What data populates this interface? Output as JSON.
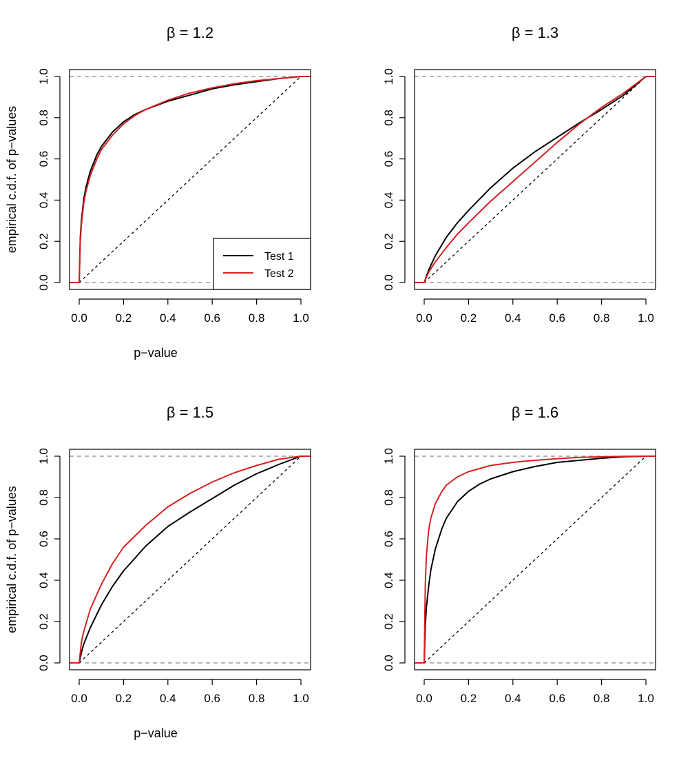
{
  "colors": {
    "test1": "#000000",
    "test2": "#d62020",
    "ref": "#888888",
    "diag": "#000000"
  },
  "chart_data": [
    {
      "type": "line",
      "title": "β = 1.2",
      "xlabel": "p−value",
      "ylabel": "empirical c.d.f. of p−values",
      "xlim": [
        0,
        1
      ],
      "ylim": [
        0,
        1
      ],
      "xticks": [
        "0.0",
        "0.2",
        "0.4",
        "0.6",
        "0.8",
        "1.0"
      ],
      "yticks": [
        "0.0",
        "0.2",
        "0.4",
        "0.6",
        "0.8",
        "1.0"
      ],
      "reference_lines": {
        "horizontal": [
          0,
          1
        ],
        "diagonal": true
      },
      "legend": {
        "position": "bottom-right",
        "entries": [
          "Test 1",
          "Test 2"
        ]
      },
      "series": [
        {
          "name": "Test 1",
          "color": "#000000",
          "x": [
            0,
            0.005,
            0.01,
            0.02,
            0.03,
            0.05,
            0.08,
            0.1,
            0.15,
            0.2,
            0.25,
            0.3,
            0.4,
            0.5,
            0.6,
            0.7,
            0.8,
            0.9,
            1.0
          ],
          "y": [
            0,
            0.22,
            0.3,
            0.4,
            0.46,
            0.54,
            0.62,
            0.66,
            0.73,
            0.78,
            0.815,
            0.84,
            0.88,
            0.91,
            0.94,
            0.96,
            0.975,
            0.99,
            1.0
          ]
        },
        {
          "name": "Test 2",
          "color": "#d62020",
          "x": [
            0,
            0.005,
            0.01,
            0.02,
            0.03,
            0.05,
            0.08,
            0.1,
            0.15,
            0.2,
            0.25,
            0.3,
            0.4,
            0.5,
            0.6,
            0.7,
            0.8,
            0.9,
            1.0
          ],
          "y": [
            0,
            0.2,
            0.28,
            0.38,
            0.44,
            0.52,
            0.6,
            0.645,
            0.715,
            0.77,
            0.81,
            0.84,
            0.885,
            0.92,
            0.945,
            0.965,
            0.98,
            0.99,
            1.0
          ]
        }
      ]
    },
    {
      "type": "line",
      "title": "β = 1.3",
      "xlabel": "",
      "ylabel": "",
      "xlim": [
        0,
        1
      ],
      "ylim": [
        0,
        1
      ],
      "xticks": [
        "0.0",
        "0.2",
        "0.4",
        "0.6",
        "0.8",
        "1.0"
      ],
      "yticks": [
        "0.0",
        "0.2",
        "0.4",
        "0.6",
        "0.8",
        "1.0"
      ],
      "reference_lines": {
        "horizontal": [
          0,
          1
        ],
        "diagonal": true
      },
      "series": [
        {
          "name": "Test 1",
          "color": "#000000",
          "x": [
            0,
            0.02,
            0.05,
            0.1,
            0.15,
            0.2,
            0.3,
            0.4,
            0.5,
            0.6,
            0.7,
            0.8,
            0.9,
            0.95,
            1.0
          ],
          "y": [
            0,
            0.06,
            0.13,
            0.22,
            0.29,
            0.35,
            0.46,
            0.555,
            0.635,
            0.705,
            0.775,
            0.84,
            0.91,
            0.955,
            1.0
          ]
        },
        {
          "name": "Test 2",
          "color": "#d62020",
          "x": [
            0,
            0.02,
            0.05,
            0.1,
            0.15,
            0.2,
            0.3,
            0.4,
            0.5,
            0.6,
            0.7,
            0.8,
            0.9,
            0.95,
            1.0
          ],
          "y": [
            0,
            0.05,
            0.1,
            0.17,
            0.235,
            0.29,
            0.395,
            0.49,
            0.585,
            0.68,
            0.77,
            0.85,
            0.92,
            0.96,
            1.0
          ]
        }
      ]
    },
    {
      "type": "line",
      "title": "β = 1.5",
      "xlabel": "p−value",
      "ylabel": "empirical c.d.f. of p−values",
      "xlim": [
        0,
        1
      ],
      "ylim": [
        0,
        1
      ],
      "xticks": [
        "0.0",
        "0.2",
        "0.4",
        "0.6",
        "0.8",
        "1.0"
      ],
      "yticks": [
        "0.0",
        "0.2",
        "0.4",
        "0.6",
        "0.8",
        "1.0"
      ],
      "reference_lines": {
        "horizontal": [
          0,
          1
        ],
        "diagonal": true
      },
      "series": [
        {
          "name": "Test 1",
          "color": "#000000",
          "x": [
            0,
            0.01,
            0.02,
            0.05,
            0.1,
            0.15,
            0.2,
            0.3,
            0.4,
            0.5,
            0.6,
            0.7,
            0.8,
            0.9,
            1.0
          ],
          "y": [
            0,
            0.05,
            0.09,
            0.17,
            0.28,
            0.37,
            0.445,
            0.565,
            0.66,
            0.73,
            0.795,
            0.86,
            0.915,
            0.96,
            1.0
          ]
        },
        {
          "name": "Test 2",
          "color": "#d62020",
          "x": [
            0,
            0.01,
            0.02,
            0.05,
            0.1,
            0.15,
            0.2,
            0.3,
            0.4,
            0.5,
            0.6,
            0.7,
            0.8,
            0.9,
            1.0
          ],
          "y": [
            0,
            0.1,
            0.15,
            0.26,
            0.38,
            0.48,
            0.56,
            0.665,
            0.755,
            0.82,
            0.875,
            0.92,
            0.955,
            0.985,
            1.0
          ]
        }
      ]
    },
    {
      "type": "line",
      "title": "β = 1.6",
      "xlabel": "",
      "ylabel": "",
      "xlim": [
        0,
        1
      ],
      "ylim": [
        0,
        1
      ],
      "xticks": [
        "0.0",
        "0.2",
        "0.4",
        "0.6",
        "0.8",
        "1.0"
      ],
      "yticks": [
        "0.0",
        "0.2",
        "0.4",
        "0.6",
        "0.8",
        "1.0"
      ],
      "reference_lines": {
        "horizontal": [
          0,
          1
        ],
        "diagonal": true
      },
      "series": [
        {
          "name": "Test 1",
          "color": "#000000",
          "x": [
            0,
            0.005,
            0.01,
            0.02,
            0.03,
            0.05,
            0.08,
            0.1,
            0.15,
            0.2,
            0.25,
            0.3,
            0.4,
            0.5,
            0.6,
            0.7,
            0.8,
            0.9,
            1.0
          ],
          "y": [
            0,
            0.18,
            0.27,
            0.37,
            0.45,
            0.55,
            0.65,
            0.7,
            0.78,
            0.83,
            0.865,
            0.89,
            0.925,
            0.95,
            0.97,
            0.98,
            0.99,
            0.997,
            1.0
          ]
        },
        {
          "name": "Test 2",
          "color": "#d62020",
          "x": [
            0,
            0.005,
            0.01,
            0.02,
            0.03,
            0.05,
            0.08,
            0.1,
            0.15,
            0.2,
            0.25,
            0.3,
            0.4,
            0.5,
            0.6,
            0.7,
            0.8,
            0.9,
            1.0
          ],
          "y": [
            0,
            0.38,
            0.52,
            0.64,
            0.7,
            0.77,
            0.83,
            0.86,
            0.9,
            0.925,
            0.94,
            0.955,
            0.97,
            0.98,
            0.988,
            0.994,
            0.997,
            0.999,
            1.0
          ]
        }
      ]
    }
  ]
}
